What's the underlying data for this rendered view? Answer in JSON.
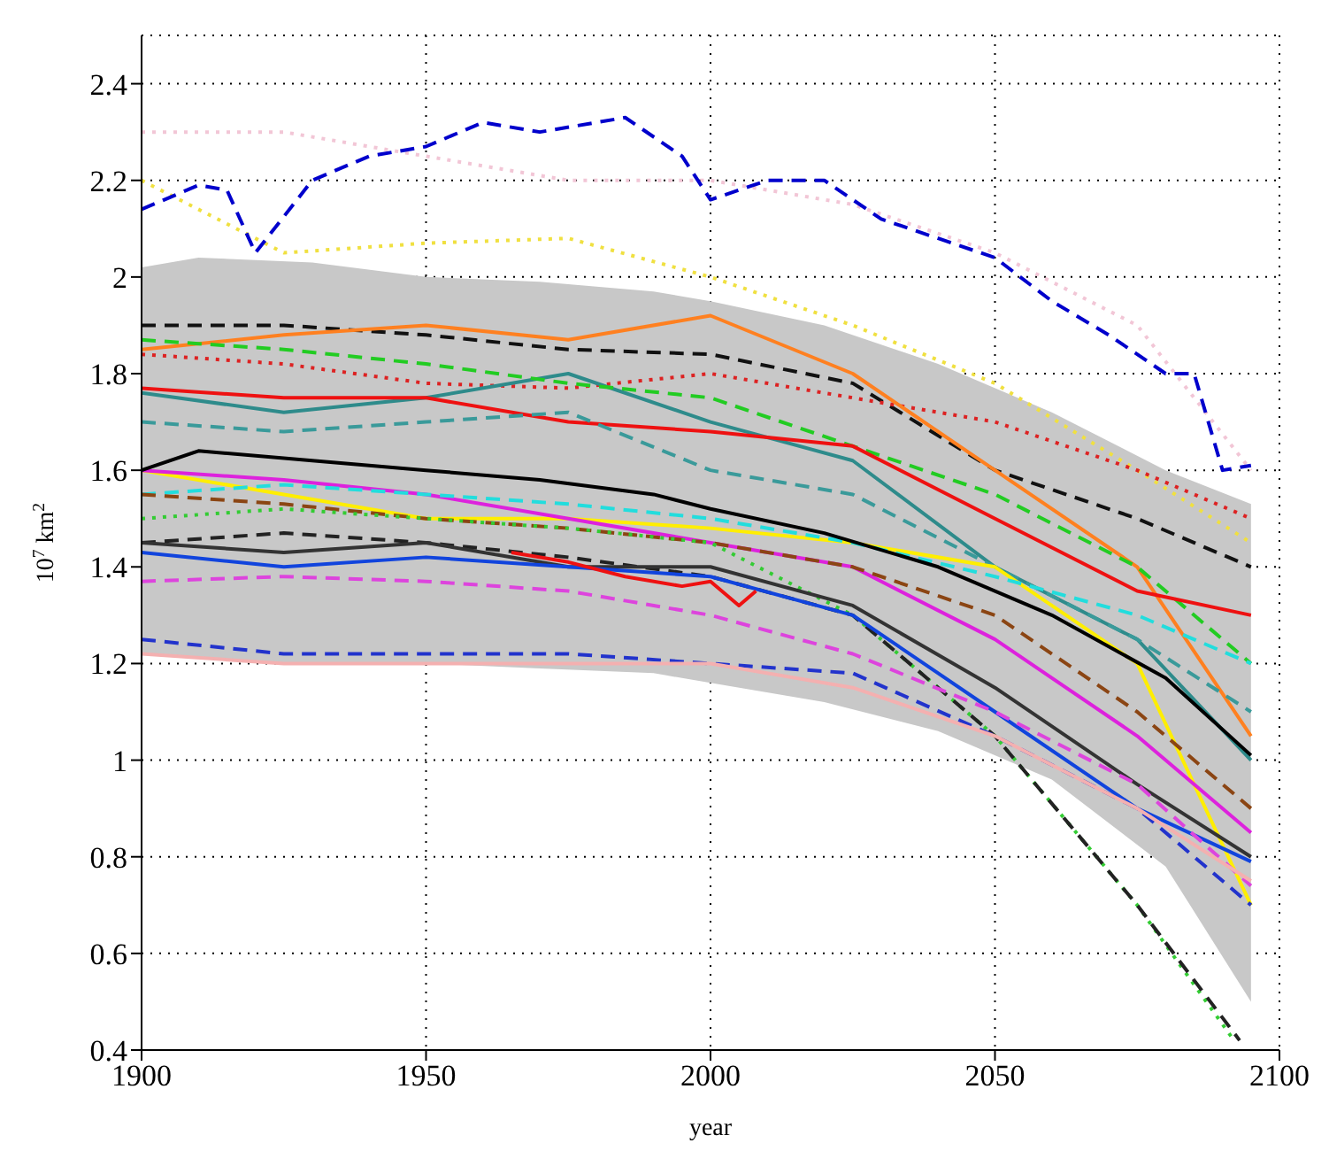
{
  "chart_data": {
    "type": "line",
    "xlabel": "year",
    "ylabel": "10$^{7}$ km$^{2}$",
    "x": [
      1900,
      1925,
      1950,
      1975,
      2000,
      2025,
      2050,
      2075,
      2095
    ],
    "xlim": [
      1900,
      2100
    ],
    "xticks": [
      1900,
      1950,
      2000,
      2050,
      2100
    ],
    "ylim": [
      0.4,
      2.5
    ],
    "yticks": [
      0.4,
      0.6,
      0.8,
      1,
      1.2,
      1.4,
      1.6,
      1.8,
      2,
      2.2,
      2.4
    ],
    "grid": true,
    "legend": false,
    "marker": "none",
    "series": [
      {
        "color": "#f2c6d6",
        "line_style": "dotted",
        "values": [
          2.3,
          2.3,
          2.25,
          2.2,
          2.2,
          2.15,
          2.05,
          1.9,
          1.6
        ]
      },
      {
        "color": "#f0e040",
        "line_style": "dotted",
        "values": [
          2.2,
          2.05,
          2.07,
          2.08,
          2.0,
          1.9,
          1.78,
          1.6,
          1.45
        ]
      },
      {
        "color": "#0000cc",
        "line_style": "dashed",
        "x": [
          1900,
          1910,
          1915,
          1920,
          1930,
          1940,
          1950,
          1960,
          1970,
          1985,
          1995,
          2000,
          2010,
          2020,
          2030,
          2040,
          2050,
          2060,
          2070,
          2080,
          2085,
          2090,
          2095
        ],
        "values": [
          2.14,
          2.19,
          2.18,
          2.05,
          2.2,
          2.25,
          2.27,
          2.32,
          2.3,
          2.33,
          2.25,
          2.16,
          2.2,
          2.2,
          2.12,
          2.08,
          2.04,
          1.95,
          1.88,
          1.8,
          1.8,
          1.6,
          1.61
        ]
      },
      {
        "color": "#111111",
        "line_style": "dashed",
        "values": [
          1.9,
          1.9,
          1.88,
          1.85,
          1.84,
          1.78,
          1.6,
          1.5,
          1.4
        ]
      },
      {
        "color": "#dd2222",
        "line_style": "dotted",
        "values": [
          1.84,
          1.82,
          1.78,
          1.77,
          1.8,
          1.75,
          1.7,
          1.6,
          1.5
        ]
      },
      {
        "color": "#ff8020",
        "line_style": "solid",
        "values": [
          1.85,
          1.88,
          1.9,
          1.87,
          1.92,
          1.8,
          1.6,
          1.4,
          1.05
        ]
      },
      {
        "color": "#2e8b8b",
        "line_style": "solid",
        "values": [
          1.76,
          1.72,
          1.75,
          1.8,
          1.7,
          1.62,
          1.4,
          1.25,
          1.0
        ]
      },
      {
        "color": "#22cc22",
        "line_style": "dashed",
        "values": [
          1.87,
          1.85,
          1.82,
          1.78,
          1.75,
          1.65,
          1.55,
          1.4,
          1.2
        ]
      },
      {
        "color": "#ee1111",
        "line_style": "solid",
        "values": [
          1.77,
          1.75,
          1.75,
          1.7,
          1.68,
          1.65,
          1.5,
          1.35,
          1.3
        ]
      },
      {
        "color": "#3a9a9a",
        "line_style": "dashed",
        "values": [
          1.7,
          1.68,
          1.7,
          1.72,
          1.6,
          1.55,
          1.4,
          1.25,
          1.1
        ]
      },
      {
        "color": "#ffee00",
        "line_style": "solid",
        "values": [
          1.6,
          1.55,
          1.5,
          1.5,
          1.48,
          1.45,
          1.4,
          1.2,
          0.7
        ]
      },
      {
        "color": "#dd22dd",
        "line_style": "solid",
        "values": [
          1.6,
          1.58,
          1.55,
          1.5,
          1.45,
          1.4,
          1.25,
          1.05,
          0.85
        ]
      },
      {
        "color": "#22dddd",
        "line_style": "dashed",
        "values": [
          1.55,
          1.57,
          1.55,
          1.53,
          1.5,
          1.45,
          1.38,
          1.3,
          1.2
        ]
      },
      {
        "color": "#8b4513",
        "line_style": "dashed",
        "values": [
          1.55,
          1.53,
          1.5,
          1.48,
          1.45,
          1.4,
          1.3,
          1.1,
          0.9
        ]
      },
      {
        "color": "#33cc33",
        "line_style": "dotted",
        "x": [
          1900,
          1925,
          1950,
          1975,
          2000,
          2025,
          2050,
          2075,
          2092
        ],
        "values": [
          1.5,
          1.52,
          1.5,
          1.48,
          1.45,
          1.3,
          1.05,
          0.7,
          0.42
        ]
      },
      {
        "color": "#222222",
        "line_style": "dashed",
        "x": [
          1900,
          1925,
          1950,
          1975,
          2000,
          2025,
          2050,
          2075,
          2093
        ],
        "values": [
          1.45,
          1.47,
          1.45,
          1.42,
          1.38,
          1.3,
          1.05,
          0.7,
          0.42
        ]
      },
      {
        "color": "#333333",
        "line_style": "solid",
        "values": [
          1.45,
          1.43,
          1.45,
          1.4,
          1.4,
          1.32,
          1.15,
          0.95,
          0.8
        ]
      },
      {
        "color": "#1144dd",
        "line_style": "solid",
        "values": [
          1.43,
          1.4,
          1.42,
          1.4,
          1.38,
          1.3,
          1.1,
          0.9,
          0.79
        ]
      },
      {
        "color": "#dd44dd",
        "line_style": "dashed",
        "values": [
          1.37,
          1.38,
          1.37,
          1.35,
          1.3,
          1.22,
          1.1,
          0.95,
          0.74
        ]
      },
      {
        "color": "#2233cc",
        "line_style": "dashed",
        "values": [
          1.25,
          1.22,
          1.22,
          1.22,
          1.2,
          1.18,
          1.05,
          0.9,
          0.7
        ]
      },
      {
        "color": "#f4b0b0",
        "line_style": "solid",
        "values": [
          1.22,
          1.2,
          1.2,
          1.2,
          1.2,
          1.15,
          1.05,
          0.9,
          0.75
        ]
      },
      {
        "color": "#ee1111",
        "line_style": "solid",
        "x": [
          1965,
          1975,
          1985,
          1995,
          2000,
          2005,
          2008
        ],
        "values": [
          1.43,
          1.41,
          1.38,
          1.36,
          1.37,
          1.32,
          1.35
        ]
      },
      {
        "color": "#000000",
        "line_style": "solid",
        "x": [
          1900,
          1910,
          1930,
          1950,
          1970,
          1990,
          2000,
          2020,
          2040,
          2060,
          2080,
          2095
        ],
        "values": [
          1.6,
          1.64,
          1.62,
          1.6,
          1.58,
          1.55,
          1.52,
          1.47,
          1.4,
          1.3,
          1.17,
          1.01
        ],
        "lower": [
          1.22,
          1.21,
          1.2,
          1.2,
          1.19,
          1.18,
          1.16,
          1.12,
          1.06,
          0.96,
          0.78,
          0.5
        ],
        "upper": [
          2.02,
          2.04,
          2.03,
          2.0,
          1.99,
          1.97,
          1.95,
          1.9,
          1.82,
          1.72,
          1.6,
          1.53
        ]
      }
    ]
  }
}
